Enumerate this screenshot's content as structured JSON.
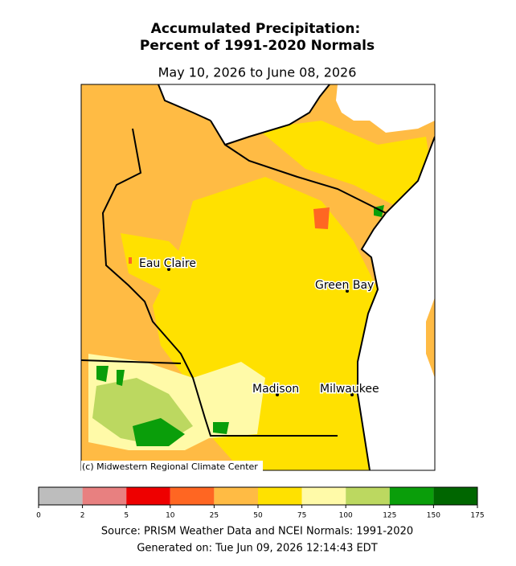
{
  "header": {
    "title_line1": "Accumulated Precipitation:",
    "title_line2": "Percent of 1991-2020 Normals",
    "date_range": "May 10, 2026 to June 08, 2026"
  },
  "map": {
    "cities": [
      {
        "label": "Eau Claire"
      },
      {
        "label": "Green Bay"
      },
      {
        "label": "Madison"
      },
      {
        "label": "Milwaukee"
      }
    ],
    "credit": "(c) Midwestern Regional Climate Center"
  },
  "legend": {
    "bins": [
      0,
      2,
      5,
      10,
      25,
      50,
      75,
      100,
      125,
      150,
      175
    ],
    "colors": [
      "#bdbdbd",
      "#e88080",
      "#ee0000",
      "#ff6622",
      "#ffbb44",
      "#ffe100",
      "#fffaa8",
      "#bcd860",
      "#0a9e0a",
      "#006600"
    ]
  },
  "footer": {
    "source": "Source: PRISM Weather Data and NCEI Normals: 1991-2020",
    "generated": "Generated on: Tue Jun 09, 2026 12:14:43 EDT"
  }
}
